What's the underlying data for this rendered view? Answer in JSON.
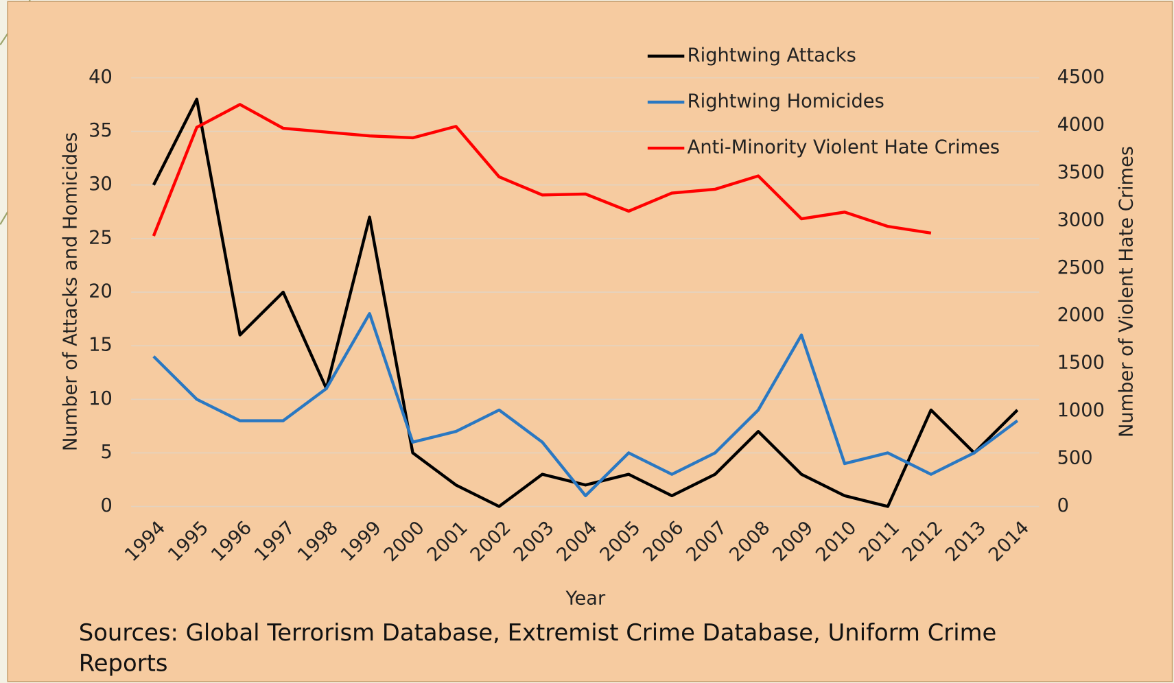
{
  "chart_data": {
    "type": "line",
    "x_label": "Year",
    "y_label": "Number of Attacks and Homicides",
    "y2_label": "Number of Violent Hate Crimes",
    "note": "Sources: Global Terrorism Database, Extremist Crime Database, Uniform Crime Reports",
    "categories": [
      "1994",
      "1995",
      "1996",
      "1997",
      "1998",
      "1999",
      "2000",
      "2001",
      "2002",
      "2003",
      "2004",
      "2005",
      "2006",
      "2007",
      "2008",
      "2009",
      "2010",
      "2011",
      "2012",
      "2013",
      "2014"
    ],
    "series": [
      {
        "name": "Rightwing Attacks",
        "color": "#000000",
        "values": [
          30,
          38,
          16,
          20,
          11,
          27,
          5,
          2,
          0,
          3,
          2,
          3,
          1,
          3,
          7,
          3,
          1,
          0,
          9,
          5,
          9
        ]
      },
      {
        "name": "Rightwing Homicides",
        "color": "#2a78c2",
        "values": [
          14,
          10,
          8,
          8,
          11,
          18,
          6,
          7,
          9,
          6,
          1,
          5,
          3,
          5,
          9,
          16,
          4,
          5,
          3,
          5,
          8
        ]
      },
      {
        "name": "Anti-Minority Violent Hate Crimes",
        "color": "#ff0000",
        "axis": "y2",
        "values": [
          2840,
          3980,
          4220,
          3970,
          3930,
          3890,
          3870,
          3990,
          3460,
          3270,
          3280,
          3100,
          3290,
          3330,
          3470,
          3020,
          3090,
          2940,
          2870,
          null,
          null
        ]
      }
    ],
    "ylim": [
      0,
      40
    ],
    "yticks": [
      0,
      5,
      10,
      15,
      20,
      25,
      30,
      35,
      40
    ],
    "y2lim": [
      0,
      4500
    ],
    "y2ticks": [
      0,
      500,
      1000,
      1500,
      2000,
      2500,
      3000,
      3500,
      4000,
      4500
    ],
    "grid": true,
    "legend": "top-right"
  }
}
